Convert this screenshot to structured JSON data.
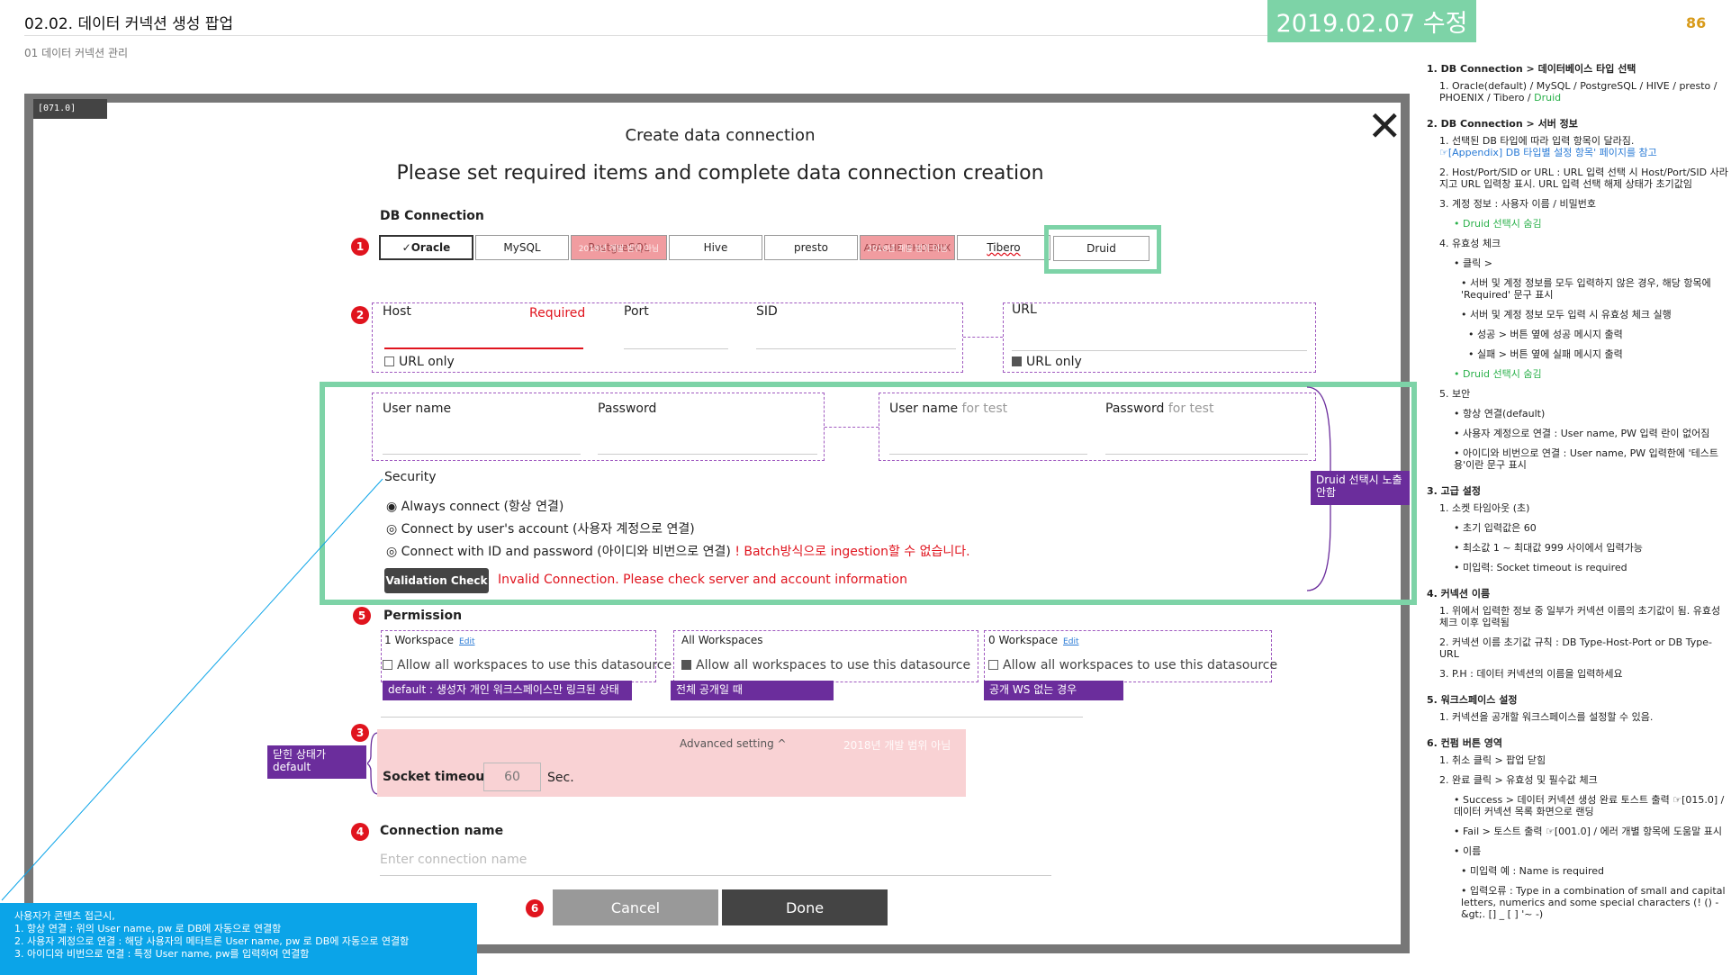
{
  "header": {
    "title": "02.02. 데이터 커넥션 생성 팝업",
    "subtitle": "01 데이터 커넥션 관리",
    "revision": "2019.02.07 수정",
    "page_number": "86"
  },
  "popup": {
    "id": "[071.0]",
    "title": "Create data connection",
    "subtitle": "Please set required items and complete data connection creation",
    "db_connection_label": "DB Connection",
    "db_types": [
      {
        "label": "✓Oracle"
      },
      {
        "label": "MySQL"
      },
      {
        "label": "PostgreSQL"
      },
      {
        "label": "Hive"
      },
      {
        "label": "presto"
      },
      {
        "label": "APACHE PHOENIX"
      },
      {
        "label": "Tibero"
      },
      {
        "label": "Druid"
      }
    ],
    "postgre_overlay": "2018년 개발 범위 아님",
    "phoenix_overlay": "2018년 개발 범위 아님",
    "host_label": "Host",
    "required_label": "Required",
    "port_label": "Port",
    "sid_label": "SID",
    "url_only_label": "URL only",
    "url_label": "URL",
    "url_only_label2": "URL only",
    "username_label": "User name",
    "password_label": "Password",
    "username_test_label": "User name",
    "password_test_label": "Password",
    "for_test": "for test",
    "security_label": "Security",
    "radio_always": "Always connect (항상 연결)",
    "radio_user": "Connect by user's account (사용자 계정으로 연결)",
    "radio_id": "Connect with ID and password (아이디와 비번으로 연결)",
    "batch_warning": "! Batch방식으로 ingestion할 수 없습니다.",
    "validation_button": "Validation Check",
    "invalid_msg": "Invalid Connection. Please check server and account information",
    "druid_hide_tag": "Druid 선택시 노출 안함",
    "permission_label": "Permission",
    "perm_1_title": "1 Workspace",
    "perm_2_title": "All Workspaces",
    "perm_3_title": "0 Workspace",
    "edit_label": "Edit",
    "perm_check_text": "Allow all workspaces to use this datasource",
    "perm_1_tag": "default : 생성자 개인 워크스페이스만 링크된 상태",
    "perm_2_tag": "전체 공개일 때",
    "perm_3_tag": "공개 WS 없는 경우",
    "closed_state_tag": "닫힌 상태가 default",
    "advanced_setting": "Advanced setting ^",
    "adv_overlay": "2018년 개발 범위 아님",
    "socket_timeout_label": "Socket timeout",
    "socket_timeout_value": "60",
    "socket_timeout_unit": "Sec.",
    "connection_name_label": "Connection name",
    "connection_name_placeholder": "Enter connection name",
    "cancel": "Cancel",
    "done": "Done",
    "numbers": [
      "1",
      "2",
      "5",
      "3",
      "4",
      "6"
    ]
  },
  "blue_note": {
    "line0": "사용자가 콘텐츠 접근시,",
    "line1": "1.        항상 연결 : 위의 User name, pw 로 DB에 자동으로 연결함",
    "line2": "2.        사용자 계정으로 연결 : 해당 사용자의 메타트론 User name, pw 로 DB에 자동으로 연결함",
    "line3": "3.        아이디와 비번으로 연결 : 특정  User name, pw를 입력하여 연결함"
  },
  "spec": {
    "s1_h": "1. DB Connection > 데이터베이스 타입 선택",
    "s1_1": "1.  Oracle(default) / MySQL / PostgreSQL / HIVE / presto / PHOENIX / Tibero / ",
    "s1_1_druid": "Druid",
    "s2_h": "2. DB Connection > 서버 정보",
    "s2_1": "1.  선택된 DB 타입에 따라 입력 항목이 달라짐.",
    "s2_1b": "☞[Appendix] DB 타입별 설정 항목' 페이지를 참고",
    "s2_2": "2.  Host/Port/SID or URL : URL 입력 선택 시 Host/Port/SID 사라지고 URL 입력창 표시. URL 입력 선택 해제 상태가 초기값임",
    "s2_3": "3.  계정 정보 : 사용자 이름 / 비밀번호",
    "s2_3a": "• Druid 선택시 숨김",
    "s2_4": "4.  유효성 체크",
    "s2_4a": "• 클릭 >",
    "s2_4b": "• 서버 및 계정 정보를 모두 입력하지 않은 경우, 해당 항목에 'Required' 문구 표시",
    "s2_4c": "• 서버 및 계정 정보 모두 입력 시 유효성 체크 실행",
    "s2_4d": "• 성공 > 버튼 옆에 성공 메시지 출력",
    "s2_4e": "• 실패 > 버튼 옆에 실패 메시지 출력",
    "s2_4f": "• Druid 선택시 숨김",
    "s2_5": "5.  보안",
    "s2_5a": "• 항상 연결(default)",
    "s2_5b": "• 사용자 계정으로 연결 : User name, PW 입력 란이 없어짐",
    "s2_5c": "• 아이디와 비번으로 연결 : User name, PW 입력한에 '테스트용'이란 문구 표시",
    "s3_h": "3. 고급 설정",
    "s3_1": "1.  소켓 타임아웃 (초)",
    "s3_1a": "• 초기 입력값은 60",
    "s3_1b": "• 최소값 1 ~ 최대값 999 사이에서 입력가능",
    "s3_1c": "• 미입력: Socket timeout is required",
    "s4_h": "4. 커넥션 이름",
    "s4_1": "1.  위에서 입력한 정보 중 일부가 커넥션 이름의 초기값이 됨. 유효성 체크 이후 입력됨",
    "s4_2": "2.  커넥션 이름 초기값 규칙 : DB Type-Host-Port or DB Type-URL",
    "s4_3": "3.  P.H : 데이터 커넥션의 이름을 입력하세요",
    "s5_h": "5. 워크스페이스 설정",
    "s5_1": "1.  커넥션을 공개할 워크스페이스를 설정할 수 있음.",
    "s6_h": "6. 컨펌 버튼 영역",
    "s6_1": "1.  취소 클릭 > 팝업 닫힘",
    "s6_2": "2.  완료 클릭 > 유효성 및 필수값 체크",
    "s6_2a": "• Success > 데이터 커넥션 생성 완료 토스트 출력 ☞[015.0] / 데이터 커넥션 목록 화면으로 랜딩",
    "s6_2b": "• Fail > 토스트 출력 ☞[001.0] / 에러 개별 항목에 도움말 표시",
    "s6_2c": "• 이름",
    "s6_2d": "• 미입력 예 : Name is required",
    "s6_2e": "• 입력오류 : Type in a combination of small and capital letters, numerics and some special characters (! () -&gt;. [] _ [ ] '~ -)"
  }
}
